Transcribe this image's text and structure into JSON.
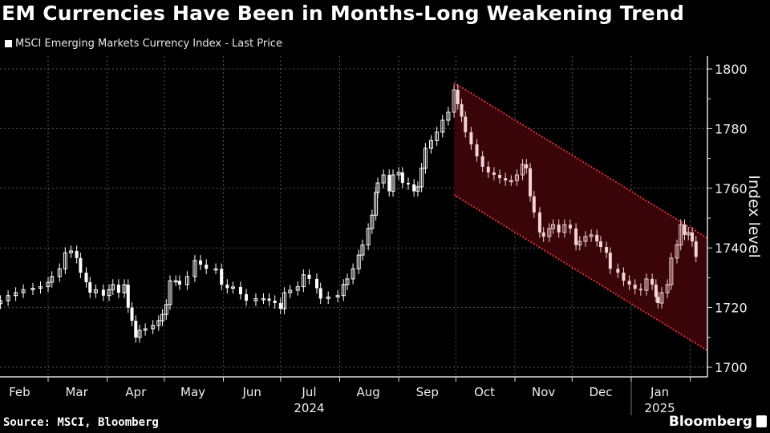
{
  "chart_data": {
    "type": "candlestick",
    "title": "EM Currencies Have Been in Months-Long Weakening Trend",
    "legend": [
      "MSCI Emerging Markets Currency Index - Last Price"
    ],
    "legend_placement": "top-left",
    "xlabel": "",
    "ylabel": "Index level",
    "x_unit": "days since 2024-02-01",
    "xlim": [
      3.75,
      375
    ],
    "ylim": [
      1695,
      1803
    ],
    "yticks": [
      1700,
      1720,
      1740,
      1760,
      1780,
      1800
    ],
    "xticks": [
      {
        "label": "Feb",
        "day": 14
      },
      {
        "label": "Mar",
        "day": 44
      },
      {
        "label": "Apr",
        "day": 75
      },
      {
        "label": "May",
        "day": 105
      },
      {
        "label": "Jun",
        "day": 136
      },
      {
        "label": "Jul",
        "day": 166
      },
      {
        "label": "Aug",
        "day": 197
      },
      {
        "label": "Sep",
        "day": 228
      },
      {
        "label": "Oct",
        "day": 258
      },
      {
        "label": "Nov",
        "day": 289
      },
      {
        "label": "Dec",
        "day": 319
      },
      {
        "label": "Jan",
        "day": 350
      }
    ],
    "month_boundaries": [
      29,
      60,
      90,
      121,
      151,
      182,
      213,
      243,
      274,
      304,
      335,
      366
    ],
    "year_labels": [
      {
        "label": "2024",
        "day": 166
      },
      {
        "label": "2025",
        "day": 350
      }
    ],
    "year_separator_day": 335,
    "grid": true,
    "series": [
      {
        "name": "MSCI Emerging Markets Currency Index - Last Price",
        "x": [
          4,
          8,
          12,
          16,
          21,
          25,
          29,
          31,
          35,
          38,
          41,
          44,
          46,
          49,
          51,
          54,
          58,
          61,
          63,
          66,
          69,
          71,
          73,
          75,
          77,
          80,
          84,
          87,
          89,
          91,
          93,
          96,
          98,
          102,
          106,
          109,
          112,
          117,
          120,
          123,
          126,
          130,
          133,
          138,
          142,
          145,
          148,
          151,
          153,
          156,
          160,
          163,
          166,
          170,
          172,
          176,
          181,
          184,
          186,
          189,
          192,
          194,
          197,
          199,
          201,
          202,
          205,
          208,
          210,
          213,
          215,
          218,
          221,
          223,
          225,
          227,
          230,
          233,
          236,
          239,
          242,
          244,
          246,
          248,
          251,
          254,
          257,
          260,
          263,
          266,
          269,
          272,
          275,
          278,
          280,
          282,
          284,
          287,
          289,
          292,
          294,
          297,
          300,
          303,
          306,
          308,
          311,
          314,
          317,
          319,
          322,
          324,
          328,
          331,
          334,
          337,
          340,
          343,
          346,
          348,
          349,
          351,
          354,
          356,
          359,
          361,
          363,
          365,
          367,
          369
        ],
        "close": [
          1722.3,
          1724,
          1725,
          1726,
          1726.5,
          1727,
          1728.5,
          1730.4,
          1733,
          1738.4,
          1739,
          1736.6,
          1731.7,
          1728.5,
          1725,
          1726,
          1724,
          1726,
          1727.7,
          1725,
          1727.7,
          1720,
          1715.6,
          1710,
          1712.4,
          1712.9,
          1714,
          1715.6,
          1717.7,
          1721,
          1729,
          1729,
          1727.7,
          1730.4,
          1735.8,
          1734.4,
          1733,
          1733,
          1727.7,
          1726.5,
          1726.9,
          1724.5,
          1722.3,
          1723,
          1723,
          1722.3,
          1721.5,
          1719.6,
          1725,
          1725.8,
          1727,
          1731,
          1729.6,
          1726.5,
          1723,
          1723.6,
          1724,
          1727.7,
          1729.6,
          1733,
          1737.6,
          1741,
          1746.5,
          1751,
          1758.6,
          1761.8,
          1764.5,
          1759,
          1764.5,
          1765.3,
          1761.8,
          1761.3,
          1759,
          1760.5,
          1766.7,
          1773.4,
          1776,
          1778.8,
          1782.8,
          1785.5,
          1793,
          1788.2,
          1784,
          1778.8,
          1774.7,
          1770.7,
          1767.2,
          1765.3,
          1764.5,
          1763.4,
          1762.6,
          1762.6,
          1764.5,
          1768,
          1766.7,
          1757.3,
          1751.9,
          1745.2,
          1743.8,
          1746.5,
          1747.8,
          1745.2,
          1747.8,
          1746.5,
          1741,
          1742.2,
          1743.8,
          1744.4,
          1742.2,
          1740.3,
          1738.4,
          1733,
          1731.7,
          1729,
          1727.7,
          1726.3,
          1725.8,
          1729.6,
          1727.7,
          1723.6,
          1721.5,
          1725,
          1727.7,
          1736.6,
          1741,
          1747.8,
          1744.4,
          1745.2,
          1742.2,
          1737
        ]
      }
    ],
    "annotations": [
      {
        "type": "trend-channel",
        "start_day": 242,
        "end_day": 375,
        "upper": [
          1795.4,
          1743.3
        ],
        "lower": [
          1757.8,
          1705.6
        ],
        "fill": "#3a0508",
        "line_color": "#e0303a"
      }
    ]
  },
  "source": "Source: MSCI, Bloomberg",
  "brand": "Bloomberg",
  "colors": {
    "background": "#000000",
    "candle": "#ffffff",
    "candle_in_channel": "#f2d4d6",
    "grid": "#555555"
  }
}
